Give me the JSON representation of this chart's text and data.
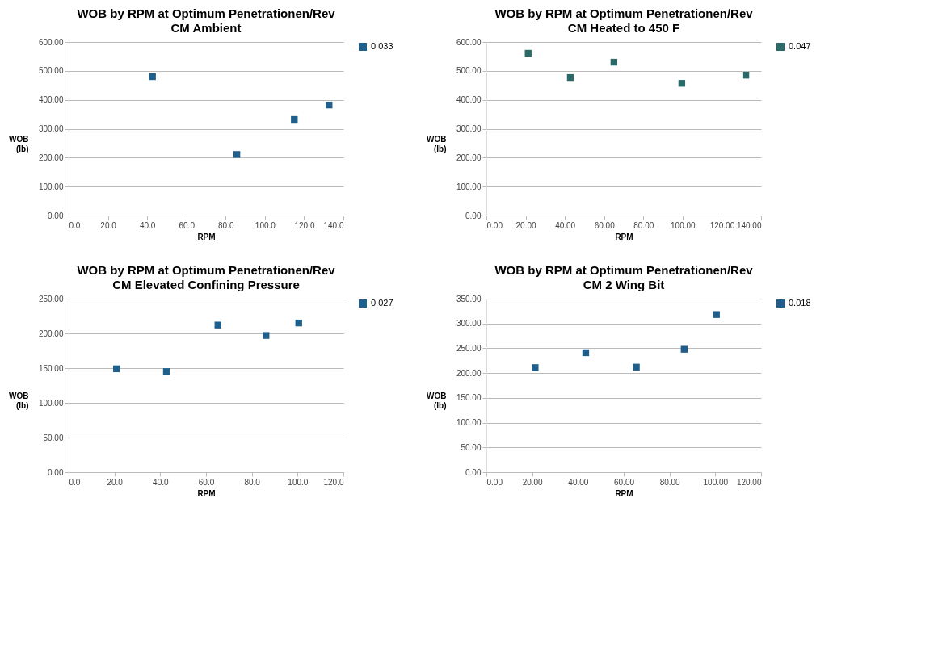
{
  "chart_data": [
    {
      "type": "scatter",
      "title": "WOB by RPM at Optimum Penetrationen/Rev",
      "subtitle": "CM Ambient",
      "xlabel": "RPM",
      "ylabel": "WOB (lb)",
      "xlim": [
        0,
        140
      ],
      "xticks": [
        {
          "value": 0,
          "label": "0.0"
        },
        {
          "value": 20,
          "label": "20.0"
        },
        {
          "value": 40,
          "label": "40.0"
        },
        {
          "value": 60,
          "label": "60.0"
        },
        {
          "value": 80,
          "label": "80.0"
        },
        {
          "value": 100,
          "label": "100.0"
        },
        {
          "value": 120,
          "label": "120.0"
        },
        {
          "value": 140,
          "label": "140.0"
        }
      ],
      "ylim": [
        0,
        600
      ],
      "yticks": [
        {
          "value": 0,
          "label": "0.00"
        },
        {
          "value": 100,
          "label": "100.00"
        },
        {
          "value": 200,
          "label": "200.00"
        },
        {
          "value": 300,
          "label": "300.00"
        },
        {
          "value": 400,
          "label": "400.00"
        },
        {
          "value": 500,
          "label": "500.00"
        },
        {
          "value": 600,
          "label": "600.00"
        }
      ],
      "x": [
        42.7,
        85.7,
        115.0,
        132.7
      ],
      "series": [
        {
          "name": "0.033",
          "color": "#1f5f8b",
          "values": [
            480,
            211,
            332,
            382
          ]
        }
      ],
      "grid": "y",
      "legend": "right",
      "marker": "square"
    },
    {
      "type": "scatter",
      "title": "WOB by RPM at Optimum Penetrationen/Rev",
      "subtitle": "CM Heated to 450 F",
      "xlabel": "RPM",
      "ylabel": "WOB (lb)",
      "xlim": [
        0,
        140
      ],
      "xticks": [
        {
          "value": 0,
          "label": "0.00"
        },
        {
          "value": 20,
          "label": "20.00"
        },
        {
          "value": 40,
          "label": "40.00"
        },
        {
          "value": 60,
          "label": "60.00"
        },
        {
          "value": 80,
          "label": "80.00"
        },
        {
          "value": 100,
          "label": "100.00"
        },
        {
          "value": 120,
          "label": "120.00"
        },
        {
          "value": 140,
          "label": "140.00"
        }
      ],
      "ylim": [
        0,
        600
      ],
      "yticks": [
        {
          "value": 0,
          "label": "0.00"
        },
        {
          "value": 100,
          "label": "100.00"
        },
        {
          "value": 200,
          "label": "200.00"
        },
        {
          "value": 300,
          "label": "300.00"
        },
        {
          "value": 400,
          "label": "400.00"
        },
        {
          "value": 500,
          "label": "500.00"
        },
        {
          "value": 600,
          "label": "600.00"
        }
      ],
      "x": [
        21.3,
        42.8,
        65.0,
        99.6,
        132.2
      ],
      "series": [
        {
          "name": "0.047",
          "color": "#2a6b6a",
          "values": [
            561,
            477,
            530,
            457,
            485
          ]
        }
      ],
      "grid": "y",
      "legend": "right",
      "marker": "square"
    },
    {
      "type": "scatter",
      "title": "WOB by RPM at Optimum Penetrationen/Rev",
      "subtitle": "CM Elevated Confining Pressure",
      "xlabel": "RPM",
      "ylabel": "WOB (lb)",
      "xlim": [
        0,
        120
      ],
      "xticks": [
        {
          "value": 0,
          "label": "0.0"
        },
        {
          "value": 20,
          "label": "20.0"
        },
        {
          "value": 40,
          "label": "40.0"
        },
        {
          "value": 60,
          "label": "60.0"
        },
        {
          "value": 80,
          "label": "80.0"
        },
        {
          "value": 100,
          "label": "100.0"
        },
        {
          "value": 120,
          "label": "120.0"
        }
      ],
      "ylim": [
        0,
        250
      ],
      "yticks": [
        {
          "value": 0,
          "label": "0.00"
        },
        {
          "value": 50,
          "label": "50.00"
        },
        {
          "value": 100,
          "label": "100.00"
        },
        {
          "value": 150,
          "label": "150.00"
        },
        {
          "value": 200,
          "label": "200.00"
        },
        {
          "value": 250,
          "label": "250.00"
        }
      ],
      "x": [
        20.9,
        42.7,
        65.2,
        86.2,
        100.5
      ],
      "series": [
        {
          "name": "0.027",
          "color": "#1f5f8b",
          "values": [
            149,
            145,
            212,
            197,
            215
          ]
        }
      ],
      "grid": "y",
      "legend": "right",
      "marker": "square"
    },
    {
      "type": "scatter",
      "title": "WOB by RPM at Optimum Penetrationen/Rev",
      "subtitle": "CM 2 Wing Bit",
      "xlabel": "RPM",
      "ylabel": "WOB (lb)",
      "xlim": [
        0,
        120
      ],
      "xticks": [
        {
          "value": 0,
          "label": "0.00"
        },
        {
          "value": 20,
          "label": "20.00"
        },
        {
          "value": 40,
          "label": "40.00"
        },
        {
          "value": 60,
          "label": "60.00"
        },
        {
          "value": 80,
          "label": "80.00"
        },
        {
          "value": 100,
          "label": "100.00"
        },
        {
          "value": 120,
          "label": "120.00"
        }
      ],
      "ylim": [
        0,
        350
      ],
      "yticks": [
        {
          "value": 0,
          "label": "0.00"
        },
        {
          "value": 50,
          "label": "50.00"
        },
        {
          "value": 100,
          "label": "100.00"
        },
        {
          "value": 150,
          "label": "150.00"
        },
        {
          "value": 200,
          "label": "200.00"
        },
        {
          "value": 250,
          "label": "250.00"
        },
        {
          "value": 300,
          "label": "300.00"
        },
        {
          "value": 350,
          "label": "350.00"
        }
      ],
      "x": [
        21.3,
        43.4,
        65.5,
        86.4,
        100.5
      ],
      "series": [
        {
          "name": "0.018",
          "color": "#1f5f8b",
          "values": [
            211,
            241,
            212,
            248,
            318
          ]
        }
      ],
      "grid": "y",
      "legend": "right",
      "marker": "square"
    }
  ]
}
